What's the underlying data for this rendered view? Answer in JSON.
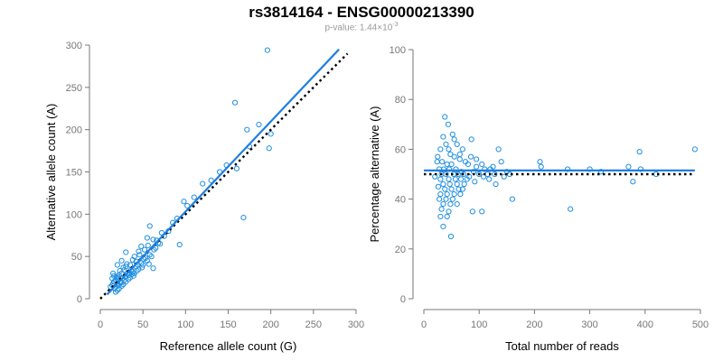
{
  "title": "rs3814164 - ENSG00000213390",
  "subtitle": {
    "text": "p-value: 1.44×10",
    "exponent": "-3"
  },
  "colors": {
    "points": "#1f8fe0",
    "fit_line": "#1f7fdf",
    "reference_line": "#000000",
    "axis": "#777777"
  },
  "chart_data": [
    {
      "type": "scatter",
      "title": "",
      "xlabel": "Reference allele count (G)",
      "ylabel": "Alternative allele count (A)",
      "xlim": [
        0,
        300
      ],
      "ylim": [
        0,
        300
      ],
      "xticks": [
        0,
        50,
        100,
        150,
        200,
        250,
        300
      ],
      "yticks": [
        0,
        50,
        100,
        150,
        200,
        250,
        300
      ],
      "grid": false,
      "points": [
        [
          196,
          294
        ],
        [
          158,
          232
        ],
        [
          186,
          206
        ],
        [
          172,
          200
        ],
        [
          200,
          195
        ],
        [
          198,
          178
        ],
        [
          168,
          96
        ],
        [
          148,
          158
        ],
        [
          160,
          154
        ],
        [
          120,
          136
        ],
        [
          98,
          115
        ],
        [
          102,
          110
        ],
        [
          93,
          64
        ],
        [
          72,
          78
        ],
        [
          58,
          86
        ],
        [
          62,
          70
        ],
        [
          68,
          66
        ],
        [
          55,
          72
        ],
        [
          48,
          62
        ],
        [
          52,
          58
        ],
        [
          45,
          56
        ],
        [
          40,
          50
        ],
        [
          38,
          46
        ],
        [
          42,
          44
        ],
        [
          35,
          40
        ],
        [
          30,
          38
        ],
        [
          28,
          34
        ],
        [
          25,
          30
        ],
        [
          22,
          28
        ],
        [
          20,
          26
        ],
        [
          18,
          22
        ],
        [
          16,
          20
        ],
        [
          15,
          18
        ],
        [
          14,
          16
        ],
        [
          12,
          14
        ],
        [
          25,
          45
        ],
        [
          30,
          55
        ],
        [
          20,
          40
        ],
        [
          35,
          25
        ],
        [
          40,
          30
        ],
        [
          45,
          35
        ],
        [
          50,
          40
        ],
        [
          55,
          45
        ],
        [
          60,
          50
        ],
        [
          65,
          60
        ],
        [
          70,
          65
        ],
        [
          25,
          15
        ],
        [
          30,
          20
        ],
        [
          20,
          10
        ],
        [
          18,
          8
        ],
        [
          22,
          12
        ],
        [
          28,
          22
        ],
        [
          33,
          28
        ],
        [
          38,
          32
        ],
        [
          42,
          38
        ],
        [
          48,
          42
        ],
        [
          53,
          48
        ],
        [
          58,
          52
        ],
        [
          63,
          58
        ],
        [
          20,
          18
        ],
        [
          24,
          20
        ],
        [
          26,
          24
        ],
        [
          32,
          30
        ],
        [
          36,
          34
        ],
        [
          19,
          25
        ],
        [
          23,
          33
        ],
        [
          27,
          37
        ],
        [
          31,
          41
        ],
        [
          62,
          36
        ],
        [
          46,
          52
        ],
        [
          15,
          30
        ],
        [
          14,
          24
        ],
        [
          16,
          27
        ],
        [
          21,
          23
        ],
        [
          29,
          26
        ],
        [
          34,
          31
        ],
        [
          37,
          29
        ],
        [
          44,
          40
        ],
        [
          51,
          47
        ],
        [
          56,
          63
        ],
        [
          17,
          12
        ],
        [
          21,
          16
        ],
        [
          24,
          19
        ],
        [
          27,
          17
        ],
        [
          33,
          23
        ],
        [
          39,
          27
        ],
        [
          43,
          33
        ],
        [
          49,
          37
        ],
        [
          57,
          41
        ],
        [
          66,
          69
        ],
        [
          75,
          74
        ],
        [
          80,
          80
        ],
        [
          85,
          90
        ],
        [
          90,
          95
        ],
        [
          110,
          120
        ],
        [
          130,
          140
        ],
        [
          140,
          150
        ],
        [
          175,
          180
        ]
      ],
      "fit_line": {
        "x": [
          8,
          280
        ],
        "y": [
          5,
          295
        ]
      },
      "reference_line": {
        "x": [
          0,
          290
        ],
        "y": [
          0,
          290
        ]
      }
    },
    {
      "type": "scatter",
      "title": "",
      "xlabel": "Total number of reads",
      "ylabel": "Percentage alternative (A)",
      "xlim": [
        0,
        500
      ],
      "ylim": [
        0,
        100
      ],
      "xticks": [
        0,
        100,
        200,
        300,
        400,
        500
      ],
      "yticks": [
        0,
        20,
        40,
        60,
        80,
        100
      ],
      "grid": false,
      "points": [
        [
          38,
          73
        ],
        [
          44,
          70
        ],
        [
          35,
          65
        ],
        [
          52,
          66
        ],
        [
          40,
          62
        ],
        [
          60,
          62
        ],
        [
          30,
          60
        ],
        [
          70,
          60
        ],
        [
          86,
          64
        ],
        [
          48,
          58
        ],
        [
          25,
          57
        ],
        [
          55,
          57
        ],
        [
          65,
          56
        ],
        [
          75,
          55
        ],
        [
          33,
          55
        ],
        [
          42,
          54
        ],
        [
          50,
          54
        ],
        [
          80,
          54
        ],
        [
          95,
          53
        ],
        [
          28,
          52
        ],
        [
          36,
          52
        ],
        [
          46,
          52
        ],
        [
          58,
          52
        ],
        [
          68,
          51
        ],
        [
          90,
          51
        ],
        [
          32,
          50
        ],
        [
          40,
          50
        ],
        [
          54,
          50
        ],
        [
          62,
          50
        ],
        [
          72,
          50
        ],
        [
          100,
          50
        ],
        [
          30,
          48
        ],
        [
          45,
          48
        ],
        [
          57,
          48
        ],
        [
          67,
          48
        ],
        [
          78,
          48
        ],
        [
          35,
          46
        ],
        [
          47,
          46
        ],
        [
          60,
          46
        ],
        [
          73,
          46
        ],
        [
          38,
          44
        ],
        [
          50,
          44
        ],
        [
          63,
          44
        ],
        [
          30,
          42
        ],
        [
          42,
          42
        ],
        [
          55,
          42
        ],
        [
          66,
          42
        ],
        [
          28,
          40
        ],
        [
          40,
          40
        ],
        [
          52,
          40
        ],
        [
          35,
          38
        ],
        [
          48,
          38
        ],
        [
          60,
          38
        ],
        [
          32,
          36
        ],
        [
          45,
          35
        ],
        [
          30,
          33
        ],
        [
          42,
          33
        ],
        [
          35,
          29
        ],
        [
          49,
          25
        ],
        [
          88,
          35
        ],
        [
          105,
          35
        ],
        [
          110,
          52
        ],
        [
          115,
          50
        ],
        [
          120,
          52
        ],
        [
          125,
          53
        ],
        [
          130,
          46
        ],
        [
          135,
          60
        ],
        [
          140,
          55
        ],
        [
          150,
          51
        ],
        [
          160,
          40
        ],
        [
          210,
          55
        ],
        [
          212,
          53
        ],
        [
          260,
          52
        ],
        [
          265,
          36
        ],
        [
          300,
          52
        ],
        [
          320,
          51
        ],
        [
          370,
          53
        ],
        [
          378,
          47
        ],
        [
          392,
          52
        ],
        [
          390,
          59
        ],
        [
          420,
          50
        ],
        [
          490,
          60
        ],
        [
          45,
          60
        ],
        [
          55,
          64
        ],
        [
          65,
          58
        ],
        [
          85,
          57
        ],
        [
          95,
          56
        ],
        [
          105,
          54
        ],
        [
          20,
          49
        ],
        [
          24,
          55
        ],
        [
          26,
          45
        ],
        [
          70,
          44
        ],
        [
          82,
          49
        ],
        [
          92,
          47
        ],
        [
          108,
          49
        ],
        [
          118,
          48
        ],
        [
          128,
          50
        ],
        [
          145,
          49
        ],
        [
          155,
          50
        ]
      ],
      "fit_line": {
        "x": [
          0,
          490
        ],
        "y": [
          51.5,
          51.5
        ]
      },
      "reference_line": {
        "x": [
          0,
          490
        ],
        "y": [
          50,
          50
        ]
      }
    }
  ]
}
